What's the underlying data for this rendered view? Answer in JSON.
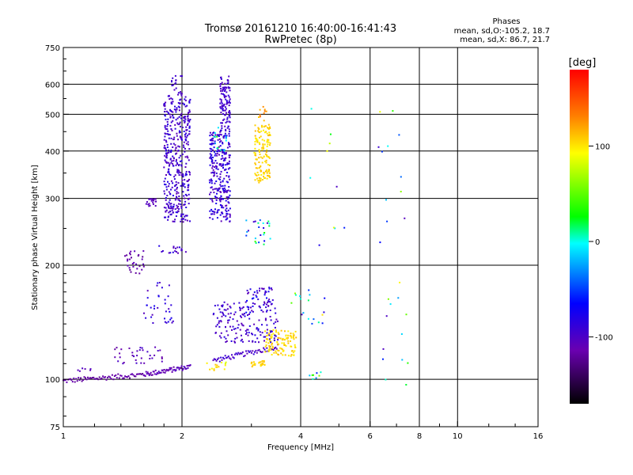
{
  "chart_data": {
    "type": "scatter",
    "title": "Tromsø 20161210 16:40:00-16:41:43",
    "subtitle": "RwPretec (8p)",
    "info": {
      "heading": "Phases",
      "line1": "mean, sd,O:-105.2, 18.7",
      "line2": "mean, sd,X:  86.7, 21.7"
    },
    "xlabel": "Frequency [MHz]",
    "ylabel": "Stationary phase Virtual Height [km]",
    "xscale": "log",
    "yscale": "log",
    "xlim": [
      1,
      16
    ],
    "ylim": [
      75,
      750
    ],
    "xticks": [
      1,
      2,
      4,
      6,
      8,
      10,
      16
    ],
    "xtick_labels": [
      "1",
      "2",
      "4",
      "6",
      "8",
      "10",
      "16"
    ],
    "xgrid": [
      2,
      4,
      6,
      8,
      10
    ],
    "yticks": [
      75,
      100,
      200,
      300,
      400,
      500,
      600,
      750
    ],
    "ytick_labels": [
      "75",
      "100",
      "200",
      "300",
      "400",
      "500",
      "600",
      "750"
    ],
    "ygrid": [
      100,
      200,
      300,
      400,
      500,
      600
    ],
    "grid": true,
    "colorbar": {
      "label": "[deg]",
      "range": [
        -170,
        180
      ],
      "ticks": [
        100,
        0,
        -100
      ],
      "tick_labels": [
        "100",
        "0",
        "-100"
      ]
    },
    "clusters": [
      {
        "x": [
          1.0,
          1.6
        ],
        "y": [
          99,
          103
        ],
        "phase": [
          -125,
          -110
        ],
        "n": 70,
        "curve": true
      },
      {
        "x": [
          1.6,
          2.1
        ],
        "y": [
          103,
          108
        ],
        "phase": [
          -120,
          -100
        ],
        "n": 60,
        "curve": true
      },
      {
        "x": [
          1.08,
          1.2
        ],
        "y": [
          105,
          108
        ],
        "phase": [
          -110,
          -100
        ],
        "n": 6
      },
      {
        "x": [
          2.4,
          3.5
        ],
        "y": [
          112,
          122
        ],
        "phase": [
          -110,
          -85
        ],
        "n": 60,
        "curve": true
      },
      {
        "x": [
          1.35,
          1.8
        ],
        "y": [
          110,
          122
        ],
        "phase": [
          -120,
          -95
        ],
        "n": 35
      },
      {
        "x": [
          1.42,
          1.62
        ],
        "y": [
          190,
          218
        ],
        "phase": [
          -125,
          -105
        ],
        "n": 30
      },
      {
        "x": [
          1.6,
          1.72
        ],
        "y": [
          285,
          300
        ],
        "phase": [
          -110,
          -100
        ],
        "n": 20
      },
      {
        "x": [
          1.8,
          2.1
        ],
        "y": [
          260,
          560
        ],
        "phase": [
          -110,
          -80
        ],
        "n": 420
      },
      {
        "x": [
          1.88,
          2.0
        ],
        "y": [
          560,
          640
        ],
        "phase": [
          -105,
          -90
        ],
        "n": 20
      },
      {
        "x": [
          2.35,
          2.65
        ],
        "y": [
          260,
          450
        ],
        "phase": [
          -110,
          -75
        ],
        "n": 280
      },
      {
        "x": [
          2.5,
          2.65
        ],
        "y": [
          450,
          630
        ],
        "phase": [
          -105,
          -85
        ],
        "n": 110
      },
      {
        "x": [
          2.4,
          2.6
        ],
        "y": [
          390,
          470
        ],
        "phase": [
          -30,
          40
        ],
        "n": 15
      },
      {
        "x": [
          3.05,
          3.35
        ],
        "y": [
          330,
          470
        ],
        "phase": [
          95,
          115
        ],
        "n": 140
      },
      {
        "x": [
          3.1,
          3.3
        ],
        "y": [
          480,
          530
        ],
        "phase": [
          100,
          140
        ],
        "n": 10
      },
      {
        "x": [
          3.25,
          3.9
        ],
        "y": [
          115,
          135
        ],
        "phase": [
          95,
          115
        ],
        "n": 110
      },
      {
        "x": [
          3.0,
          3.25
        ],
        "y": [
          108,
          112
        ],
        "phase": [
          100,
          115
        ],
        "n": 25
      },
      {
        "x": [
          2.4,
          3.5
        ],
        "y": [
          125,
          160
        ],
        "phase": [
          -110,
          -80
        ],
        "n": 160
      },
      {
        "x": [
          2.9,
          3.4
        ],
        "y": [
          150,
          175
        ],
        "phase": [
          -110,
          -60
        ],
        "n": 50
      },
      {
        "x": [
          1.6,
          1.9
        ],
        "y": [
          140,
          180
        ],
        "phase": [
          -110,
          -70
        ],
        "n": 35
      },
      {
        "x": [
          1.75,
          2.1
        ],
        "y": [
          215,
          225
        ],
        "phase": [
          -110,
          -80
        ],
        "n": 18
      },
      {
        "x": [
          2.3,
          2.6
        ],
        "y": [
          105,
          112
        ],
        "phase": [
          80,
          110
        ],
        "n": 15
      },
      {
        "x": [
          2.9,
          3.35
        ],
        "y": [
          225,
          265
        ],
        "phase": [
          -100,
          50
        ],
        "n": 25
      },
      {
        "x": [
          3.7,
          4.6
        ],
        "y": [
          140,
          180
        ],
        "phase": [
          -110,
          110
        ],
        "n": 18
      },
      {
        "x": [
          4.2,
          4.5
        ],
        "y": [
          100,
          105
        ],
        "phase": [
          -100,
          100
        ],
        "n": 8
      },
      {
        "x": [
          6.3,
          7.5
        ],
        "y": [
          95,
          520
        ],
        "phase": [
          -110,
          110
        ],
        "n": 25
      },
      {
        "x": [
          4.2,
          5.2
        ],
        "y": [
          220,
          530
        ],
        "phase": [
          -110,
          110
        ],
        "n": 10
      }
    ]
  }
}
